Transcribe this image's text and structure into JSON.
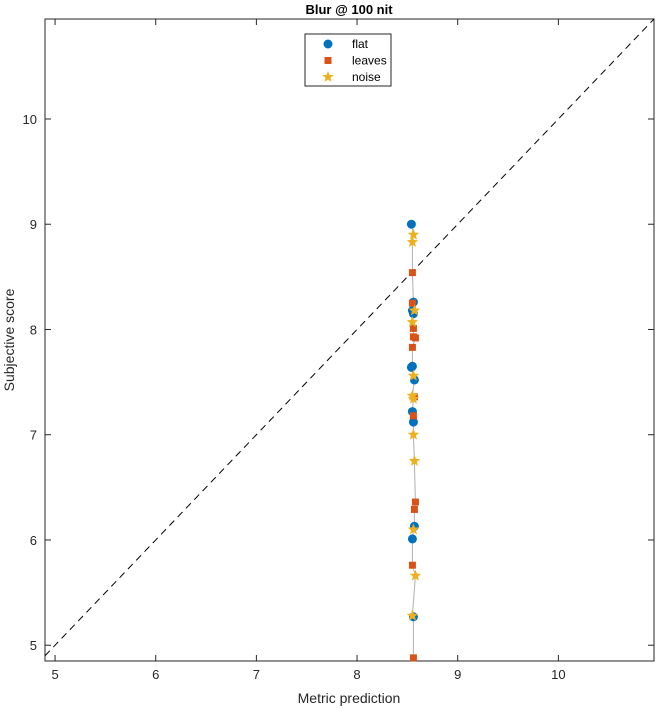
{
  "chart_data": {
    "type": "scatter",
    "title": "Blur @ 100 nit",
    "xlabel": "Metric prediction",
    "ylabel": "Subjective score",
    "xlim": [
      4.9,
      10.95
    ],
    "ylim": [
      4.85,
      10.95
    ],
    "xticks": [
      5,
      6,
      7,
      8,
      9,
      10
    ],
    "yticks": [
      5,
      6,
      7,
      8,
      9,
      10
    ],
    "grid": false,
    "legend_position": "top-center",
    "reference_line": "y = x (dashed)",
    "connector_color": "#b0b0b0",
    "series": [
      {
        "name": "flat",
        "marker": "circle",
        "color": "#0072BD",
        "points": [
          [
            8.54,
            9.0
          ],
          [
            8.56,
            8.26
          ],
          [
            8.55,
            8.18
          ],
          [
            8.56,
            8.15
          ],
          [
            8.55,
            7.65
          ],
          [
            8.54,
            7.64
          ],
          [
            8.57,
            7.52
          ],
          [
            8.55,
            7.22
          ],
          [
            8.56,
            7.12
          ],
          [
            8.57,
            6.13
          ],
          [
            8.55,
            6.01
          ],
          [
            8.56,
            5.27
          ]
        ]
      },
      {
        "name": "leaves",
        "marker": "square",
        "color": "#D95319",
        "points": [
          [
            8.55,
            8.54
          ],
          [
            8.55,
            8.25
          ],
          [
            8.56,
            8.01
          ],
          [
            8.56,
            7.93
          ],
          [
            8.58,
            7.92
          ],
          [
            8.55,
            7.83
          ],
          [
            8.57,
            7.36
          ],
          [
            8.56,
            7.18
          ],
          [
            8.58,
            6.36
          ],
          [
            8.57,
            6.29
          ],
          [
            8.55,
            5.76
          ],
          [
            8.56,
            4.88
          ]
        ]
      },
      {
        "name": "noise",
        "marker": "star",
        "color": "#EDB120",
        "points": [
          [
            8.56,
            8.9
          ],
          [
            8.55,
            8.83
          ],
          [
            8.57,
            8.18
          ],
          [
            8.55,
            8.07
          ],
          [
            8.56,
            7.56
          ],
          [
            8.55,
            7.37
          ],
          [
            8.56,
            7.34
          ],
          [
            8.56,
            7.0
          ],
          [
            8.57,
            6.75
          ],
          [
            8.56,
            6.1
          ],
          [
            8.58,
            5.66
          ],
          [
            8.55,
            5.28
          ]
        ]
      }
    ]
  }
}
